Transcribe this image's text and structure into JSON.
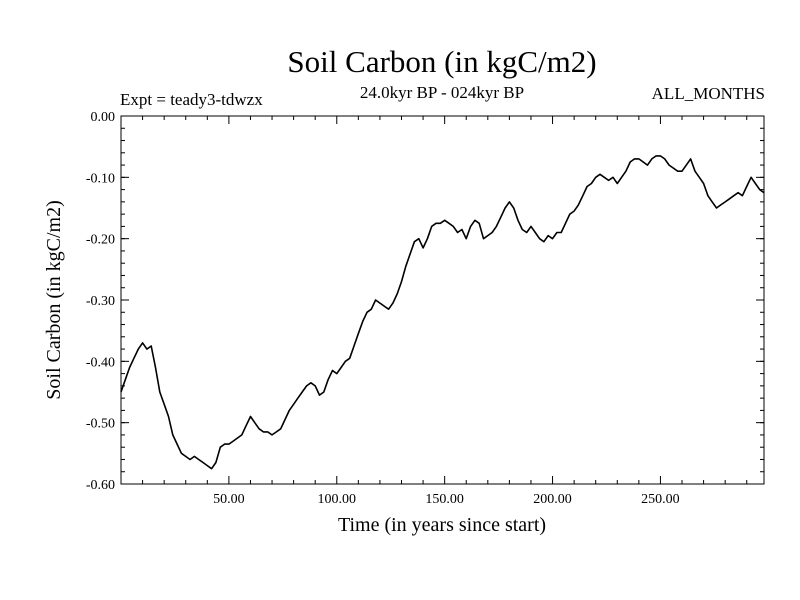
{
  "chart_data": {
    "type": "line",
    "title": "Soil Carbon (in kgC/m2)",
    "subtitle": "24.0kyr BP - 024kyr BP",
    "left_annotation": "Expt = teady3-tdwzx",
    "right_annotation": "ALL_MONTHS",
    "xlabel": "Time (in years since start)",
    "ylabel": "Soil Carbon (in kgC/m2)",
    "xlim": [
      0,
      298
    ],
    "ylim": [
      -0.6,
      0.0
    ],
    "x_ticks": [
      50,
      100,
      150,
      200,
      250
    ],
    "x_tick_labels": [
      "50.00",
      "100.00",
      "150.00",
      "200.00",
      "250.00"
    ],
    "y_ticks": [
      0.0,
      -0.1,
      -0.2,
      -0.3,
      -0.4,
      -0.5,
      -0.6
    ],
    "y_tick_labels": [
      "0.00",
      "-0.10",
      "-0.20",
      "-0.30",
      "-0.40",
      "-0.50",
      "-0.60"
    ],
    "series": [
      {
        "name": "Soil Carbon",
        "color": "#000000",
        "x": [
          0,
          2,
          4,
          6,
          8,
          10,
          12,
          14,
          16,
          18,
          20,
          22,
          24,
          26,
          28,
          30,
          32,
          34,
          36,
          38,
          40,
          42,
          44,
          46,
          48,
          50,
          52,
          54,
          56,
          58,
          60,
          62,
          64,
          66,
          68,
          70,
          72,
          74,
          76,
          78,
          80,
          82,
          84,
          86,
          88,
          90,
          92,
          94,
          96,
          98,
          100,
          102,
          104,
          106,
          108,
          110,
          112,
          114,
          116,
          118,
          120,
          122,
          124,
          126,
          128,
          130,
          132,
          134,
          136,
          138,
          140,
          142,
          144,
          146,
          148,
          150,
          152,
          154,
          156,
          158,
          160,
          162,
          164,
          166,
          168,
          170,
          172,
          174,
          176,
          178,
          180,
          182,
          184,
          186,
          188,
          190,
          192,
          194,
          196,
          198,
          200,
          202,
          204,
          206,
          208,
          210,
          212,
          214,
          216,
          218,
          220,
          222,
          224,
          226,
          228,
          230,
          232,
          234,
          236,
          238,
          240,
          242,
          244,
          246,
          248,
          250,
          252,
          254,
          256,
          258,
          260,
          262,
          264,
          266,
          268,
          270,
          272,
          274,
          276,
          278,
          280,
          282,
          284,
          286,
          288,
          290,
          292,
          294,
          296,
          298
        ],
        "values": [
          -0.45,
          -0.43,
          -0.41,
          -0.395,
          -0.38,
          -0.37,
          -0.38,
          -0.375,
          -0.41,
          -0.45,
          -0.47,
          -0.49,
          -0.52,
          -0.535,
          -0.55,
          -0.555,
          -0.56,
          -0.555,
          -0.56,
          -0.565,
          -0.57,
          -0.575,
          -0.565,
          -0.54,
          -0.535,
          -0.535,
          -0.53,
          -0.525,
          -0.52,
          -0.505,
          -0.49,
          -0.5,
          -0.51,
          -0.515,
          -0.515,
          -0.52,
          -0.515,
          -0.51,
          -0.495,
          -0.48,
          -0.47,
          -0.46,
          -0.45,
          -0.44,
          -0.435,
          -0.44,
          -0.455,
          -0.45,
          -0.43,
          -0.415,
          -0.42,
          -0.41,
          -0.4,
          -0.395,
          -0.375,
          -0.355,
          -0.335,
          -0.32,
          -0.315,
          -0.3,
          -0.305,
          -0.31,
          -0.315,
          -0.305,
          -0.29,
          -0.27,
          -0.245,
          -0.225,
          -0.205,
          -0.2,
          -0.215,
          -0.2,
          -0.18,
          -0.175,
          -0.175,
          -0.17,
          -0.175,
          -0.18,
          -0.19,
          -0.185,
          -0.2,
          -0.18,
          -0.17,
          -0.175,
          -0.2,
          -0.195,
          -0.19,
          -0.18,
          -0.165,
          -0.15,
          -0.14,
          -0.15,
          -0.17,
          -0.185,
          -0.19,
          -0.18,
          -0.19,
          -0.2,
          -0.205,
          -0.195,
          -0.2,
          -0.19,
          -0.19,
          -0.175,
          -0.16,
          -0.155,
          -0.145,
          -0.13,
          -0.115,
          -0.11,
          -0.1,
          -0.095,
          -0.1,
          -0.105,
          -0.1,
          -0.11,
          -0.1,
          -0.09,
          -0.075,
          -0.07,
          -0.07,
          -0.075,
          -0.08,
          -0.07,
          -0.065,
          -0.065,
          -0.07,
          -0.08,
          -0.085,
          -0.09,
          -0.09,
          -0.08,
          -0.07,
          -0.09,
          -0.1,
          -0.11,
          -0.13,
          -0.14,
          -0.15,
          -0.145,
          -0.14,
          -0.135,
          -0.13,
          -0.125,
          -0.13,
          -0.115,
          -0.1,
          -0.11,
          -0.12,
          -0.125
        ]
      }
    ]
  }
}
